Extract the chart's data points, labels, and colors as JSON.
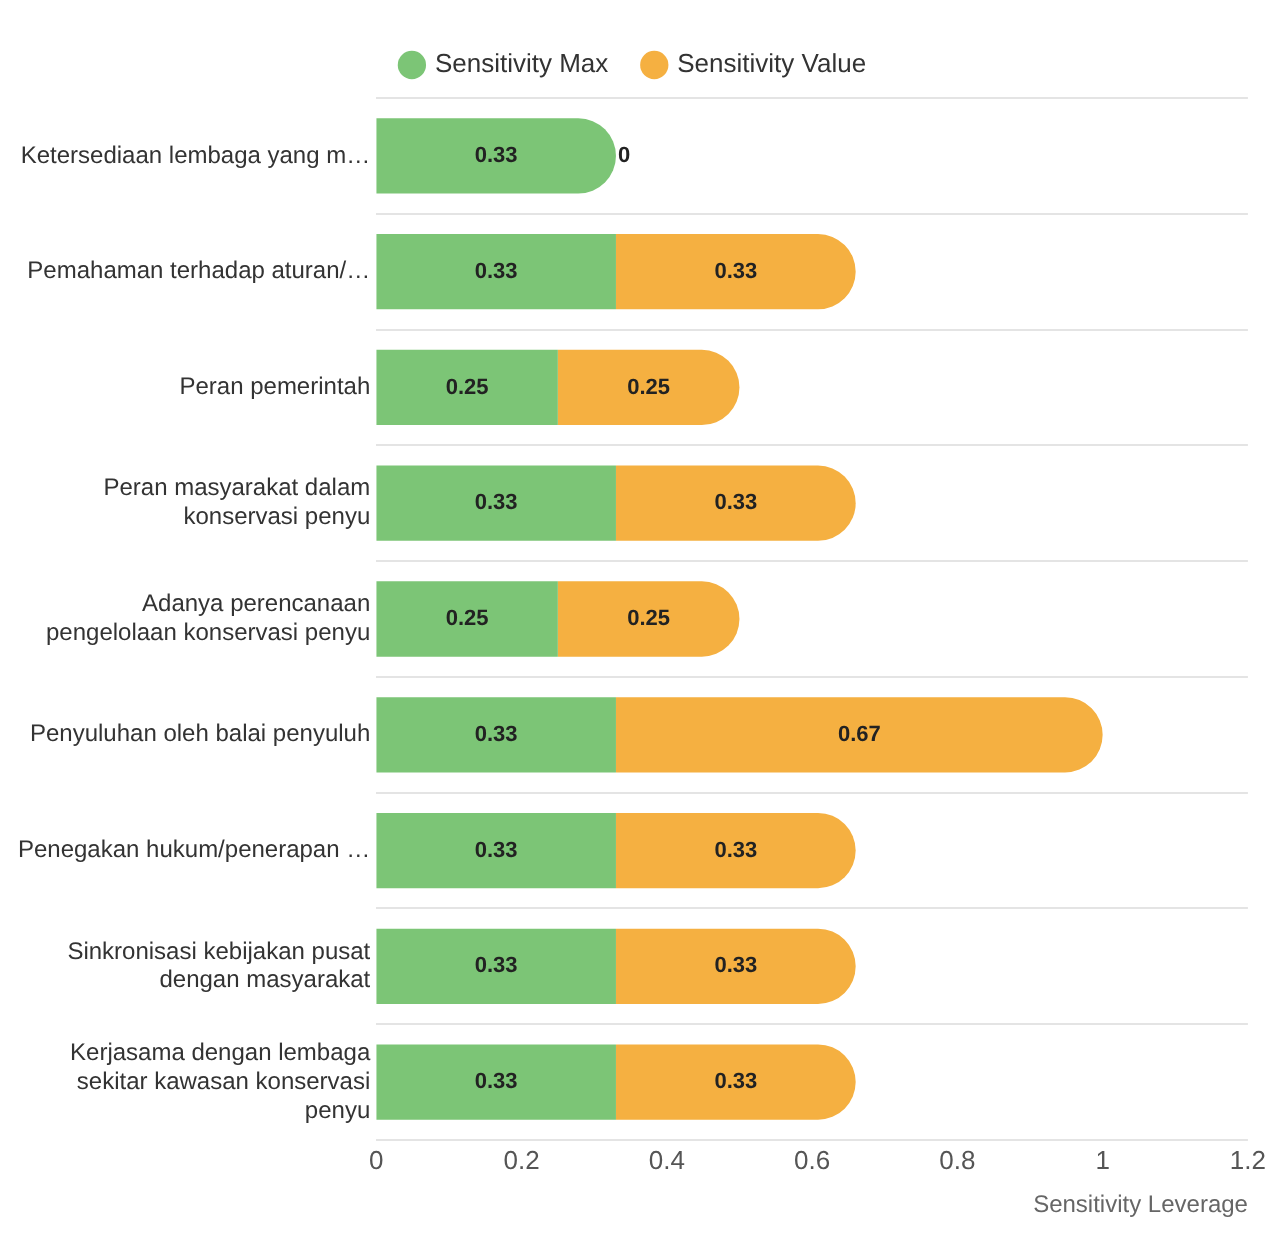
{
  "chart_data": {
    "type": "bar",
    "orientation": "horizontal",
    "stacked": true,
    "categories": [
      "Ketersediaan lembaga yang m…",
      "Pemahaman terhadap aturan/…",
      "Peran pemerintah",
      "Peran masyarakat dalam\nkonservasi penyu",
      "Adanya perencanaan\npengelolaan konservasi penyu",
      "Penyuluhan oleh balai penyuluh",
      "Penegakan hukum/penerapan …",
      "Sinkronisasi kebijakan pusat\ndengan masyarakat",
      "Kerjasama dengan lembaga\nsekitar kawasan konservasi\npenyu"
    ],
    "series": [
      {
        "name": "Sensitivity Max",
        "color": "#7cc576",
        "values": [
          0.33,
          0.33,
          0.25,
          0.33,
          0.25,
          0.33,
          0.33,
          0.33,
          0.33
        ]
      },
      {
        "name": "Sensitivity Value",
        "color": "#f5b041",
        "values": [
          0,
          0.33,
          0.25,
          0.33,
          0.25,
          0.67,
          0.33,
          0.33,
          0.33
        ]
      }
    ],
    "xlabel": "Sensitivity Leverage",
    "xlim": [
      0,
      1.2
    ],
    "xticks": [
      0,
      0.2,
      0.4,
      0.6,
      0.8,
      1,
      1.2
    ],
    "grid": "y",
    "legend": "top",
    "data_labels": true
  }
}
